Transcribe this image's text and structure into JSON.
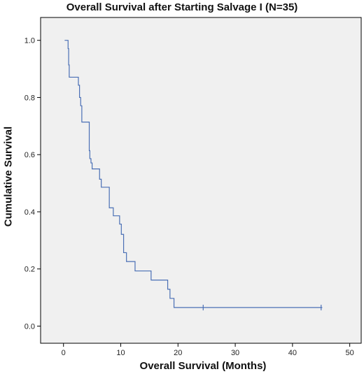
{
  "chart_data": {
    "type": "line",
    "title": "Overall Survival after Starting Salvage I (N=35)",
    "xlabel": "Overall Survival (Months)",
    "ylabel": "Cumulative Survival",
    "xlim": [
      -4,
      52
    ],
    "ylim": [
      -0.06,
      1.08
    ],
    "xticks": [
      0,
      10,
      20,
      30,
      40,
      50
    ],
    "yticks": [
      0.0,
      0.2,
      0.4,
      0.6,
      0.8,
      1.0
    ],
    "xtick_labels": [
      "0",
      "10",
      "20",
      "30",
      "40",
      "50"
    ],
    "ytick_labels": [
      "0.0",
      "0.2",
      "0.4",
      "0.6",
      "0.8",
      "1.0"
    ],
    "grid": false,
    "series": [
      {
        "x": [
          0.2,
          0.8,
          0.9,
          1.0,
          2.6,
          2.8,
          3.0,
          3.2,
          4.5,
          4.6,
          4.8,
          5.0,
          6.3,
          6.6,
          7.0,
          8.0,
          8.2,
          8.7,
          9.8,
          10.1,
          10.5,
          11.0,
          12.5,
          15.3,
          18.2,
          18.6,
          19.3
        ],
        "y": [
          1.0,
          0.971,
          0.914,
          0.871,
          0.843,
          0.8,
          0.771,
          0.714,
          0.614,
          0.586,
          0.571,
          0.55,
          0.514,
          0.486,
          0.486,
          0.414,
          0.414,
          0.386,
          0.357,
          0.321,
          0.257,
          0.226,
          0.193,
          0.161,
          0.129,
          0.097,
          0.065
        ],
        "end_x": 45.2,
        "censored": [
          {
            "x": 24.4,
            "y": 0.065
          },
          {
            "x": 45.0,
            "y": 0.065
          }
        ]
      }
    ],
    "colors": {
      "line": "#4a6fb5",
      "plot_bg": "#f0f0f0",
      "frame": "#000000"
    }
  }
}
